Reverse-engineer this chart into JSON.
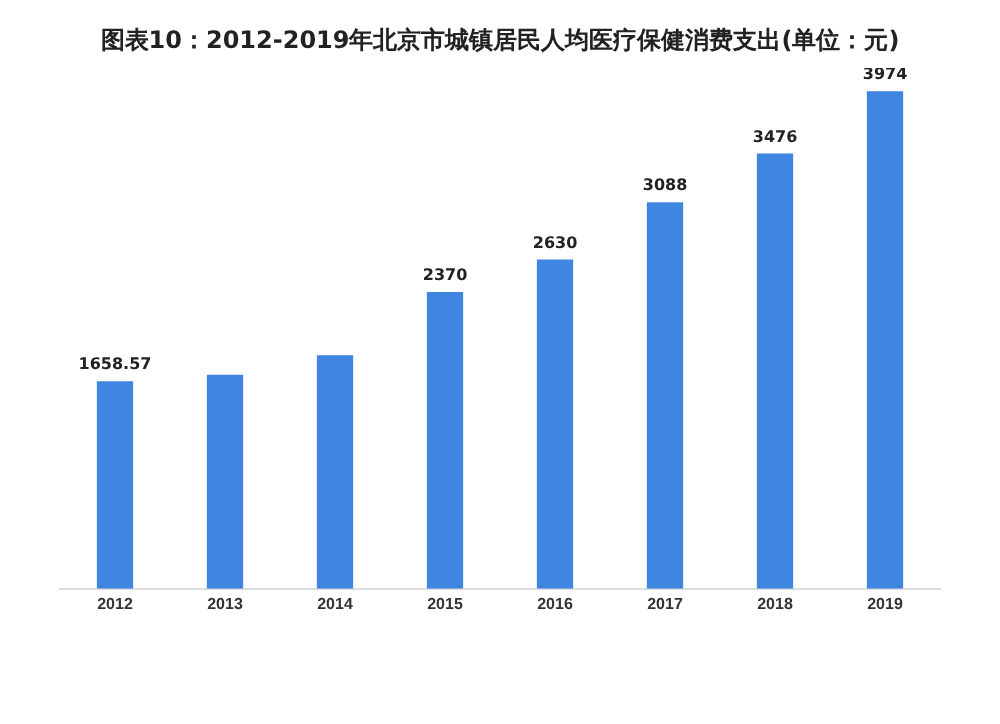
{
  "chart_data": {
    "type": "bar",
    "title": "图表10：2012-2019年北京市城镇居民人均医疗保健消费支出(单位：元)",
    "categories": [
      "2012",
      "2013",
      "2014",
      "2015",
      "2016",
      "2017",
      "2018",
      "2019"
    ],
    "values": [
      1658.57,
      1710,
      1866,
      2370,
      2630,
      3088,
      3476,
      3974
    ],
    "value_labels": [
      "1658.57",
      null,
      null,
      "2370",
      "2630",
      "3088",
      "3476",
      "3974"
    ],
    "color": "#3f86e0",
    "grid": false,
    "legend": false
  }
}
